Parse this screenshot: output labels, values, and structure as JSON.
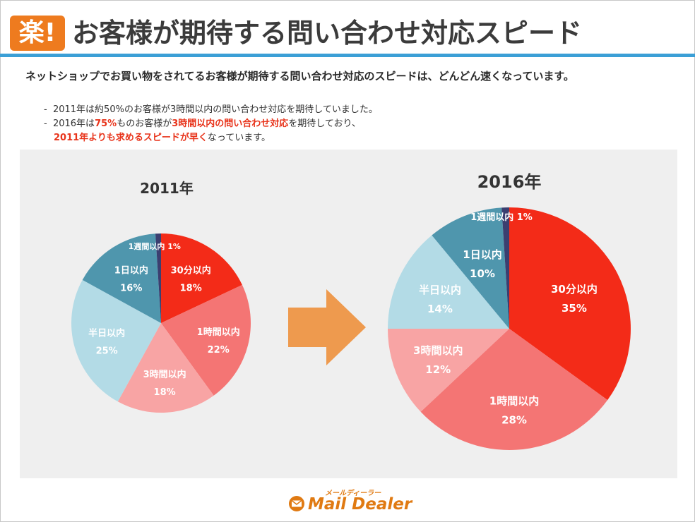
{
  "header": {
    "logo_text": "楽!",
    "title": "お客様が期待する問い合わせ対応スピード"
  },
  "intro": {
    "lead": "ネットショップでお買い物をされてるお客様が期待する問い合わせ対応のスピードは、どんどん速くなっています。",
    "bullet1": {
      "dash": "-",
      "text": "2011年は約50%のお客様が3時間以内の問い合わせ対応を期待していました。"
    },
    "bullet2": {
      "dash": "-",
      "part1": "2016年は",
      "hl1": "75%",
      "part2": "ものお客様が",
      "hl2": "3時間以内の問い合わせ対応",
      "part3": "を期待しており、",
      "hl3": "2011年よりも求めるスピードが早く",
      "part4": "なっています。"
    }
  },
  "colors": {
    "accent_bar": "#3b9fd6",
    "arrow": "#ee9a4e",
    "highlight": "#e8331a"
  },
  "arrow": {
    "icon": "right-arrow-icon"
  },
  "chart_data": [
    {
      "type": "pie",
      "title": "2011年",
      "labels": [
        "30分以内",
        "1時間以内",
        "3時間以内",
        "半日以内",
        "1日以内",
        "1週間以内"
      ],
      "values": [
        18,
        22,
        18,
        25,
        16,
        1
      ],
      "value_labels": [
        "18%",
        "22%",
        "18%",
        "25%",
        "16%",
        "1%"
      ],
      "colors": [
        "#f32b18",
        "#f47574",
        "#f8a4a4",
        "#b3dbe6",
        "#4f96ad",
        "#3b3f70"
      ]
    },
    {
      "type": "pie",
      "title": "2016年",
      "labels": [
        "30分以内",
        "1時間以内",
        "3時間以内",
        "半日以内",
        "1日以内",
        "1週間以内"
      ],
      "values": [
        35,
        28,
        12,
        14,
        10,
        1
      ],
      "value_labels": [
        "35%",
        "28%",
        "12%",
        "14%",
        "10%",
        "1%"
      ],
      "colors": [
        "#f32b18",
        "#f47574",
        "#f8a4a4",
        "#b3dbe6",
        "#4f96ad",
        "#3b3f70"
      ]
    }
  ],
  "footer": {
    "brand_kana": "メールディーラー",
    "brand_name": "Mail Dealer",
    "icon": "envelope-icon"
  }
}
